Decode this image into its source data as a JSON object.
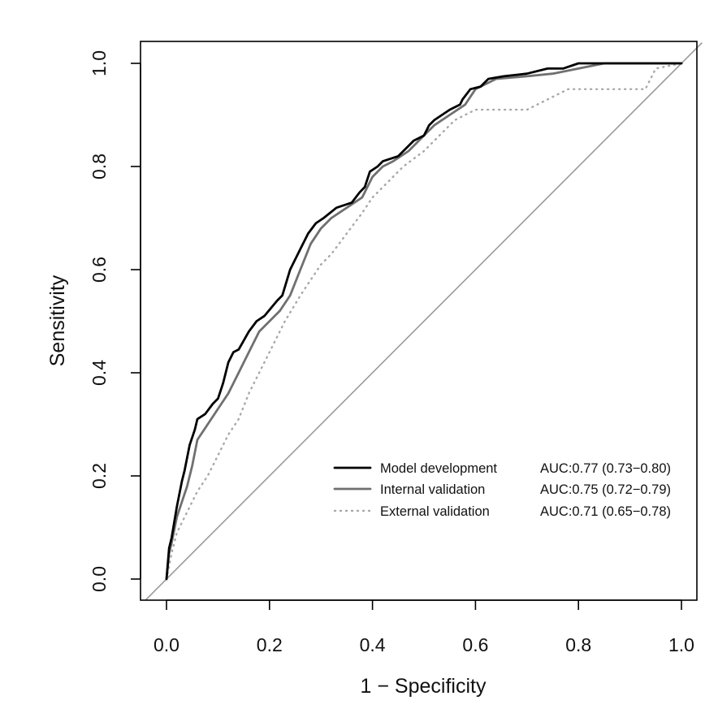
{
  "chart_data": {
    "type": "line",
    "xlabel": "1 − Specificity",
    "ylabel": "Sensitivity",
    "xlim": [
      -0.04,
      1.04
    ],
    "ylim": [
      -0.04,
      1.04
    ],
    "x_ticks": [
      "0.0",
      "0.2",
      "0.4",
      "0.6",
      "0.8",
      "1.0"
    ],
    "y_ticks": [
      "0.0",
      "0.2",
      "0.4",
      "0.6",
      "0.8",
      "1.0"
    ],
    "grid": false,
    "legend_position": "bottom-right",
    "reference_line": {
      "x": [
        0,
        1
      ],
      "y": [
        0,
        1
      ],
      "color": "#9a9a9a"
    },
    "series": [
      {
        "name": "Model development",
        "auc": "AUC:0.77 (0.73−0.80)",
        "color": "#000000",
        "style": "solid",
        "x": [
          0,
          0.005,
          0.01,
          0.02,
          0.03,
          0.035,
          0.045,
          0.055,
          0.06,
          0.075,
          0.09,
          0.1,
          0.11,
          0.115,
          0.12,
          0.13,
          0.14,
          0.16,
          0.175,
          0.19,
          0.215,
          0.225,
          0.24,
          0.26,
          0.27,
          0.275,
          0.29,
          0.305,
          0.33,
          0.36,
          0.375,
          0.385,
          0.395,
          0.41,
          0.42,
          0.45,
          0.47,
          0.48,
          0.5,
          0.51,
          0.52,
          0.55,
          0.57,
          0.575,
          0.59,
          0.61,
          0.625,
          0.655,
          0.7,
          0.74,
          0.77,
          0.8,
          0.84,
          1.0
        ],
        "y": [
          0,
          0.06,
          0.08,
          0.14,
          0.19,
          0.21,
          0.26,
          0.29,
          0.31,
          0.32,
          0.34,
          0.35,
          0.38,
          0.4,
          0.42,
          0.44,
          0.445,
          0.48,
          0.5,
          0.51,
          0.54,
          0.55,
          0.6,
          0.64,
          0.66,
          0.67,
          0.69,
          0.7,
          0.72,
          0.73,
          0.75,
          0.76,
          0.79,
          0.8,
          0.81,
          0.82,
          0.84,
          0.85,
          0.86,
          0.88,
          0.89,
          0.91,
          0.92,
          0.93,
          0.95,
          0.955,
          0.97,
          0.975,
          0.98,
          0.99,
          0.99,
          1.0,
          1.0,
          1.0
        ]
      },
      {
        "name": "Internal validation",
        "auc": "AUC:0.75 (0.72−0.79)",
        "color": "#707070",
        "style": "solid",
        "x": [
          0,
          0.005,
          0.01,
          0.02,
          0.03,
          0.04,
          0.05,
          0.06,
          0.08,
          0.1,
          0.12,
          0.14,
          0.16,
          0.18,
          0.2,
          0.22,
          0.24,
          0.26,
          0.28,
          0.3,
          0.32,
          0.35,
          0.38,
          0.4,
          0.42,
          0.44,
          0.47,
          0.5,
          0.52,
          0.55,
          0.58,
          0.6,
          0.64,
          0.7,
          0.75,
          0.8,
          0.85,
          1.0
        ],
        "y": [
          0,
          0.05,
          0.07,
          0.12,
          0.15,
          0.18,
          0.22,
          0.27,
          0.3,
          0.33,
          0.36,
          0.4,
          0.44,
          0.48,
          0.5,
          0.52,
          0.55,
          0.6,
          0.65,
          0.68,
          0.7,
          0.72,
          0.74,
          0.78,
          0.8,
          0.81,
          0.83,
          0.86,
          0.88,
          0.9,
          0.92,
          0.95,
          0.97,
          0.975,
          0.98,
          0.99,
          1.0,
          1.0
        ]
      },
      {
        "name": "External validation",
        "auc": "AUC:0.71 (0.65−0.78)",
        "color": "#a8a8a8",
        "style": "dotted",
        "x": [
          0,
          0.01,
          0.02,
          0.04,
          0.06,
          0.08,
          0.1,
          0.12,
          0.14,
          0.16,
          0.18,
          0.2,
          0.23,
          0.26,
          0.28,
          0.3,
          0.32,
          0.35,
          0.38,
          0.4,
          0.43,
          0.46,
          0.5,
          0.53,
          0.56,
          0.6,
          0.7,
          0.74,
          0.78,
          0.88,
          0.93,
          0.95,
          1.0
        ],
        "y": [
          0,
          0.05,
          0.09,
          0.13,
          0.17,
          0.2,
          0.24,
          0.28,
          0.31,
          0.36,
          0.4,
          0.44,
          0.5,
          0.55,
          0.58,
          0.61,
          0.63,
          0.67,
          0.71,
          0.74,
          0.77,
          0.8,
          0.83,
          0.86,
          0.89,
          0.91,
          0.91,
          0.93,
          0.95,
          0.95,
          0.95,
          0.99,
          1.0
        ]
      }
    ]
  }
}
